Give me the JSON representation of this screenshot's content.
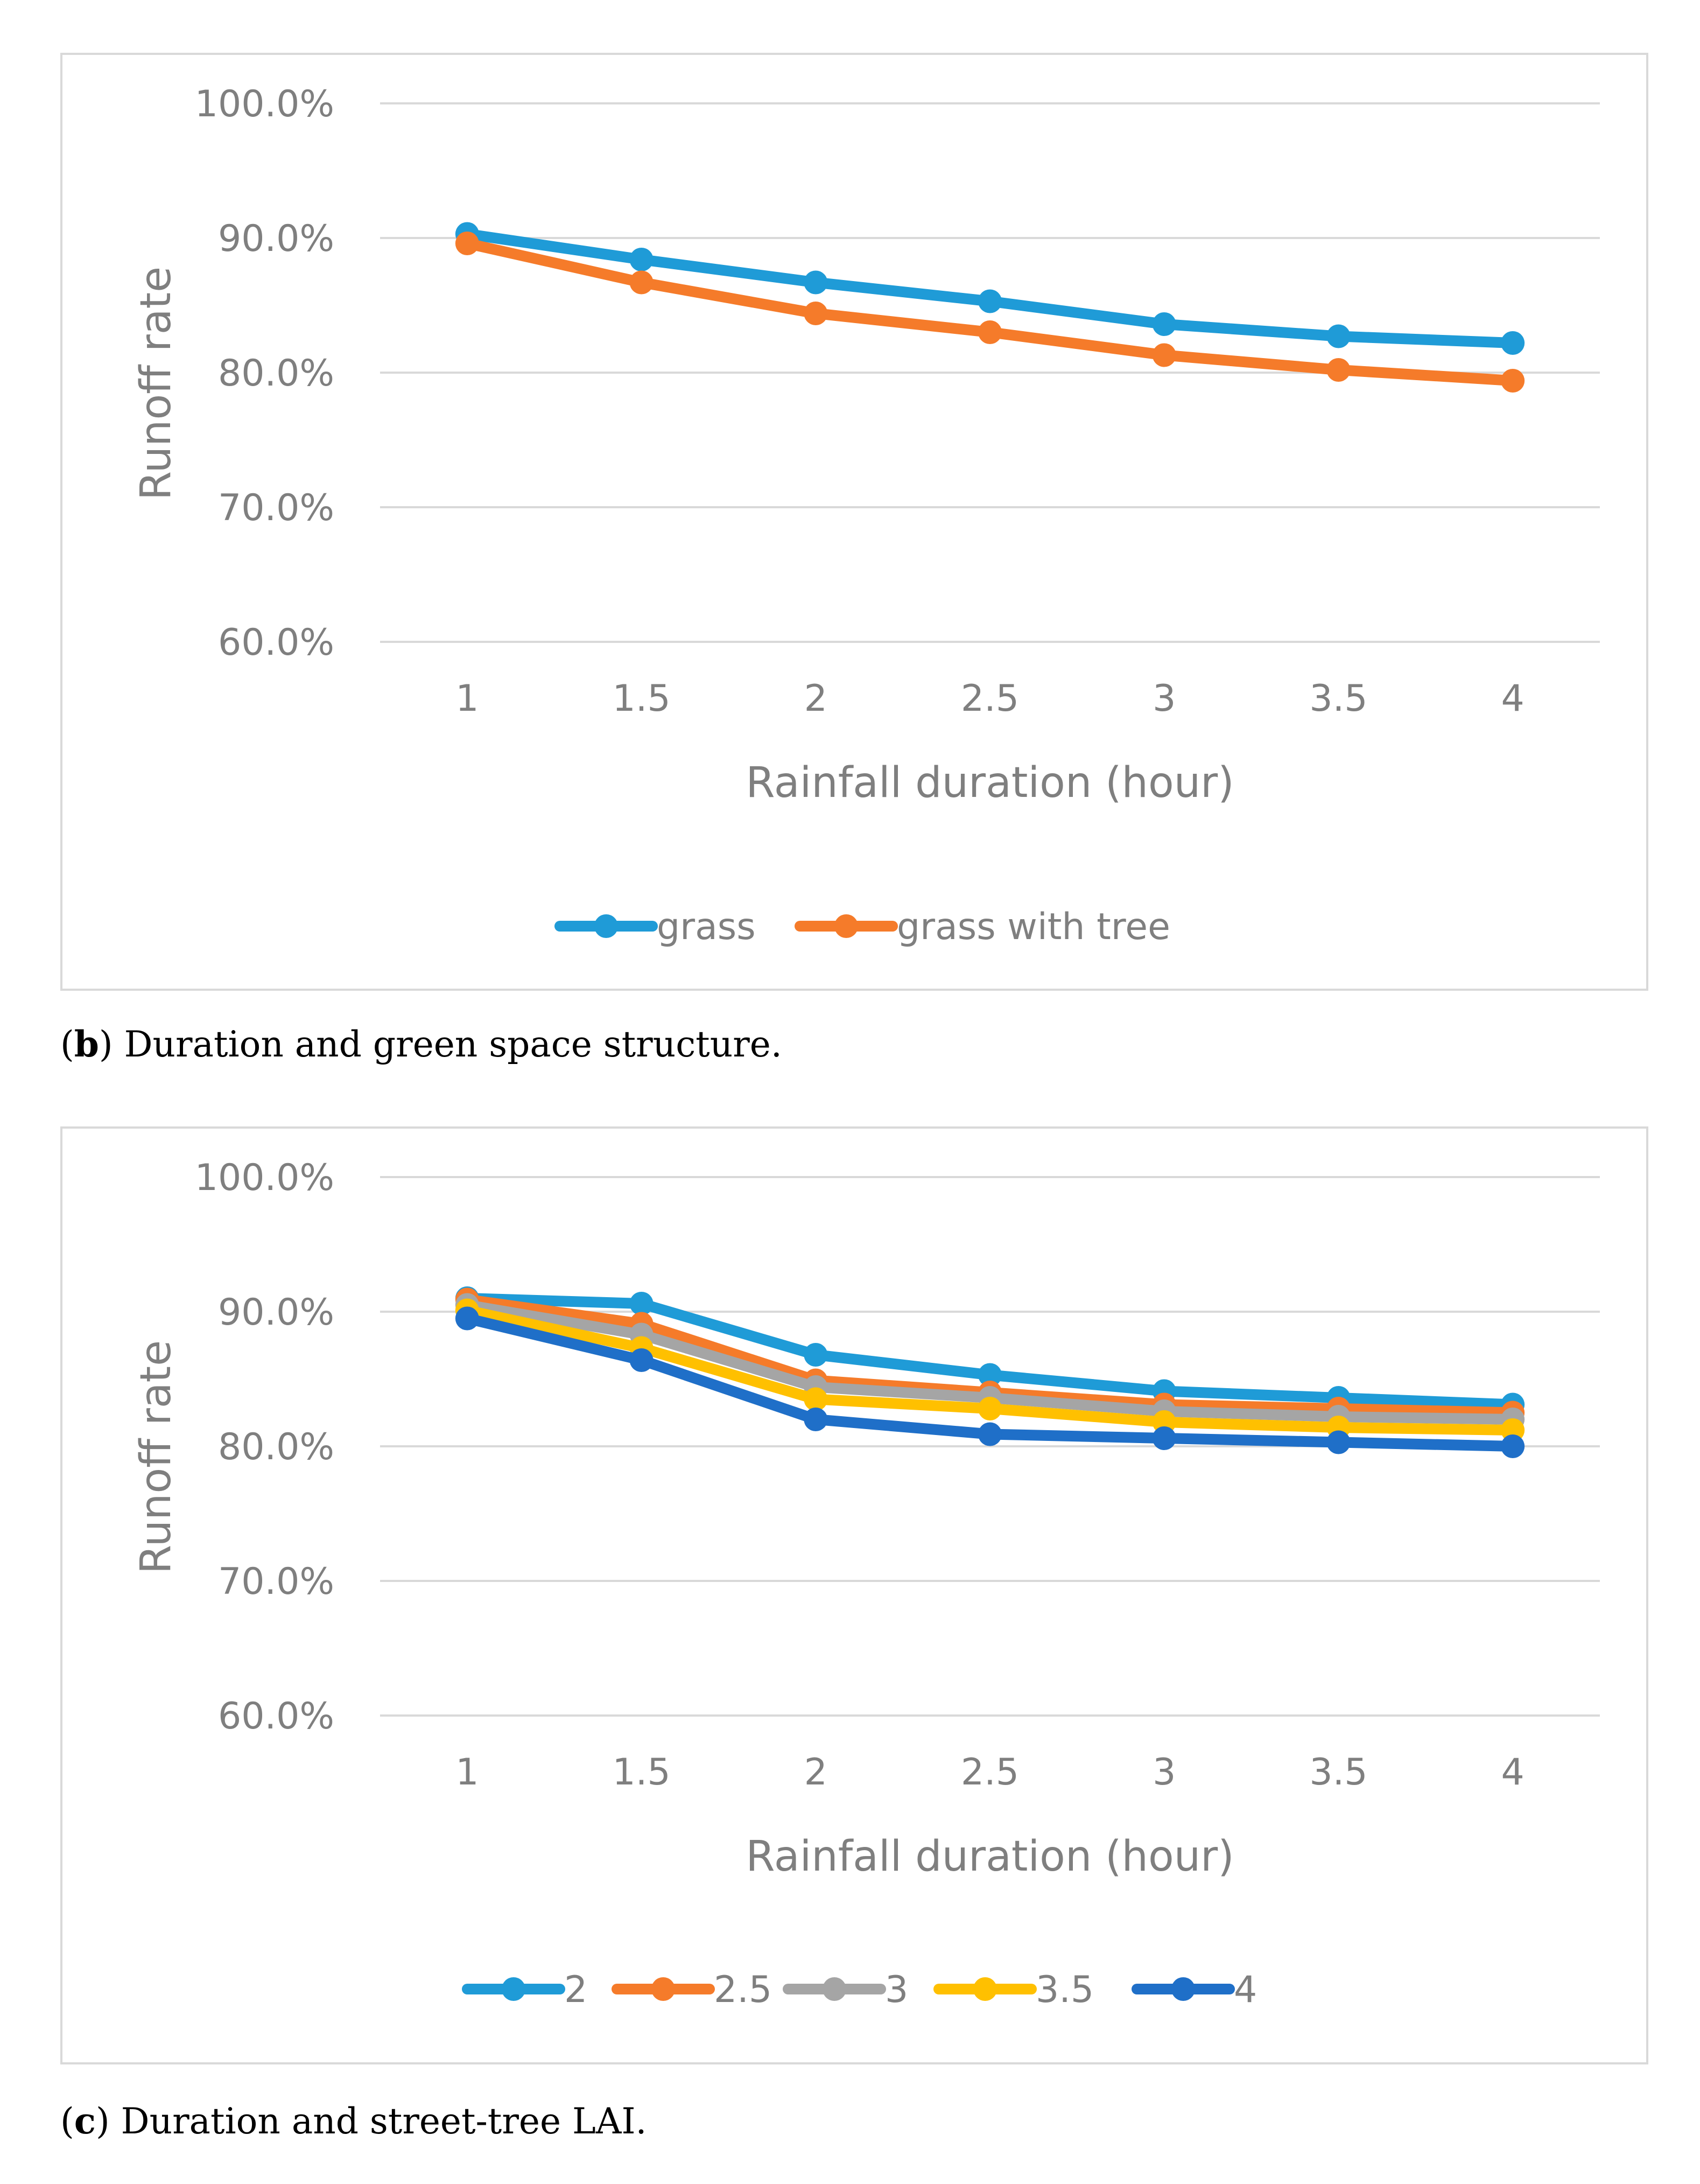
{
  "chart_data": [
    {
      "type": "line",
      "panel": "b",
      "categories": [
        "1",
        "1.5",
        "2",
        "2.5",
        "3",
        "3.5",
        "4"
      ],
      "xlabel": "Rainfall duration (hour)",
      "ylabel": "Runoff rate",
      "ylim": [
        60,
        100
      ],
      "yticks": [
        60,
        70,
        80,
        90,
        100
      ],
      "ytick_labels": [
        "60.0%",
        "70.0%",
        "80.0%",
        "90.0%",
        "100.0%"
      ],
      "grid": true,
      "legend_position": "bottom",
      "series": [
        {
          "name": "grass",
          "color": "#1f9bd7",
          "values": [
            90.3,
            88.4,
            86.7,
            85.3,
            83.6,
            82.7,
            82.2
          ]
        },
        {
          "name": "grass with tree",
          "color": "#f57b2a",
          "values": [
            89.6,
            86.7,
            84.4,
            83.0,
            81.3,
            80.2,
            79.4
          ]
        }
      ]
    },
    {
      "type": "line",
      "panel": "c",
      "categories": [
        "1",
        "1.5",
        "2",
        "2.5",
        "3",
        "3.5",
        "4"
      ],
      "xlabel": "Rainfall duration (hour)",
      "ylabel": "Runoff rate",
      "ylim": [
        60,
        100
      ],
      "yticks": [
        60,
        70,
        80,
        90,
        100
      ],
      "ytick_labels": [
        "60.0%",
        "70.0%",
        "80.0%",
        "90.0%",
        "100.0%"
      ],
      "grid": true,
      "legend_position": "bottom",
      "series": [
        {
          "name": "2",
          "color": "#1f9bd7",
          "values": [
            91.0,
            90.6,
            86.8,
            85.3,
            84.1,
            83.6,
            83.1
          ]
        },
        {
          "name": "2.5",
          "color": "#f57b2a",
          "values": [
            90.9,
            89.1,
            84.9,
            84.0,
            83.1,
            82.8,
            82.5
          ]
        },
        {
          "name": "3",
          "color": "#a5a5a5",
          "values": [
            90.5,
            88.3,
            84.4,
            83.6,
            82.6,
            82.2,
            82.0
          ]
        },
        {
          "name": "3.5",
          "color": "#ffc000",
          "values": [
            90.1,
            87.3,
            83.5,
            82.8,
            81.8,
            81.4,
            81.2
          ]
        },
        {
          "name": "4",
          "color": "#1f6fc8",
          "values": [
            89.5,
            86.4,
            82.0,
            80.9,
            80.6,
            80.3,
            80.0
          ]
        }
      ]
    }
  ],
  "captions": {
    "b": {
      "label": "b",
      "text": ") Duration and green space structure."
    },
    "c": {
      "label": "c",
      "text": ") Duration and street-tree LAI."
    }
  }
}
